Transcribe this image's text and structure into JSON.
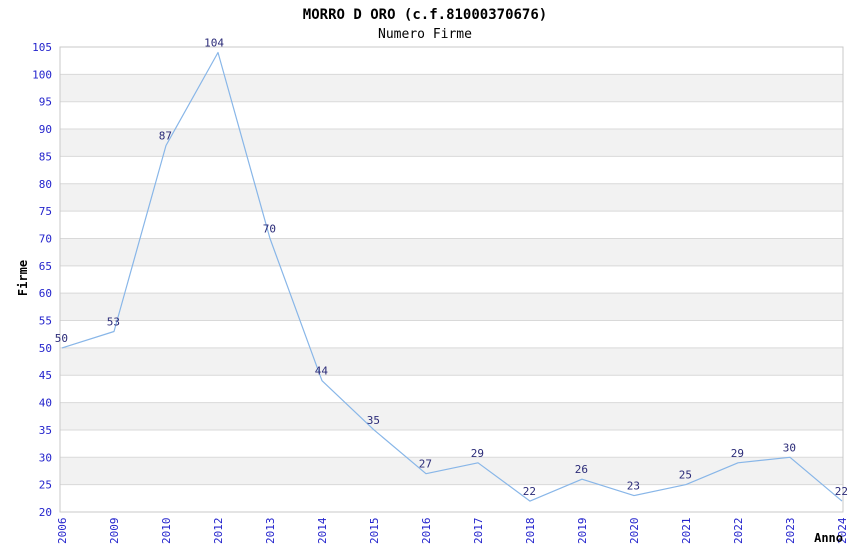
{
  "chart_data": {
    "type": "line",
    "title": "MORRO D ORO (c.f.81000370676)",
    "subtitle": "Numero Firme",
    "xlabel": "Anno",
    "ylabel": "Firme",
    "categories": [
      "2006",
      "2009",
      "2010",
      "2012",
      "2013",
      "2014",
      "2015",
      "2016",
      "2017",
      "2018",
      "2019",
      "2020",
      "2021",
      "2022",
      "2023",
      "2024"
    ],
    "values": [
      50,
      53,
      87,
      104,
      70,
      44,
      35,
      27,
      29,
      22,
      26,
      23,
      25,
      29,
      30,
      22
    ],
    "ylim": [
      20,
      105
    ],
    "ytick_step": 5,
    "grid": true,
    "legend_position": "none",
    "colors": {
      "line": "#88b6e8",
      "band": "#f2f2f2",
      "grid": "#d9d9d9",
      "border": "#c9c9c9",
      "tick_label": "#2323cc",
      "data_label": "#2b2b78",
      "text": "#404040"
    }
  }
}
